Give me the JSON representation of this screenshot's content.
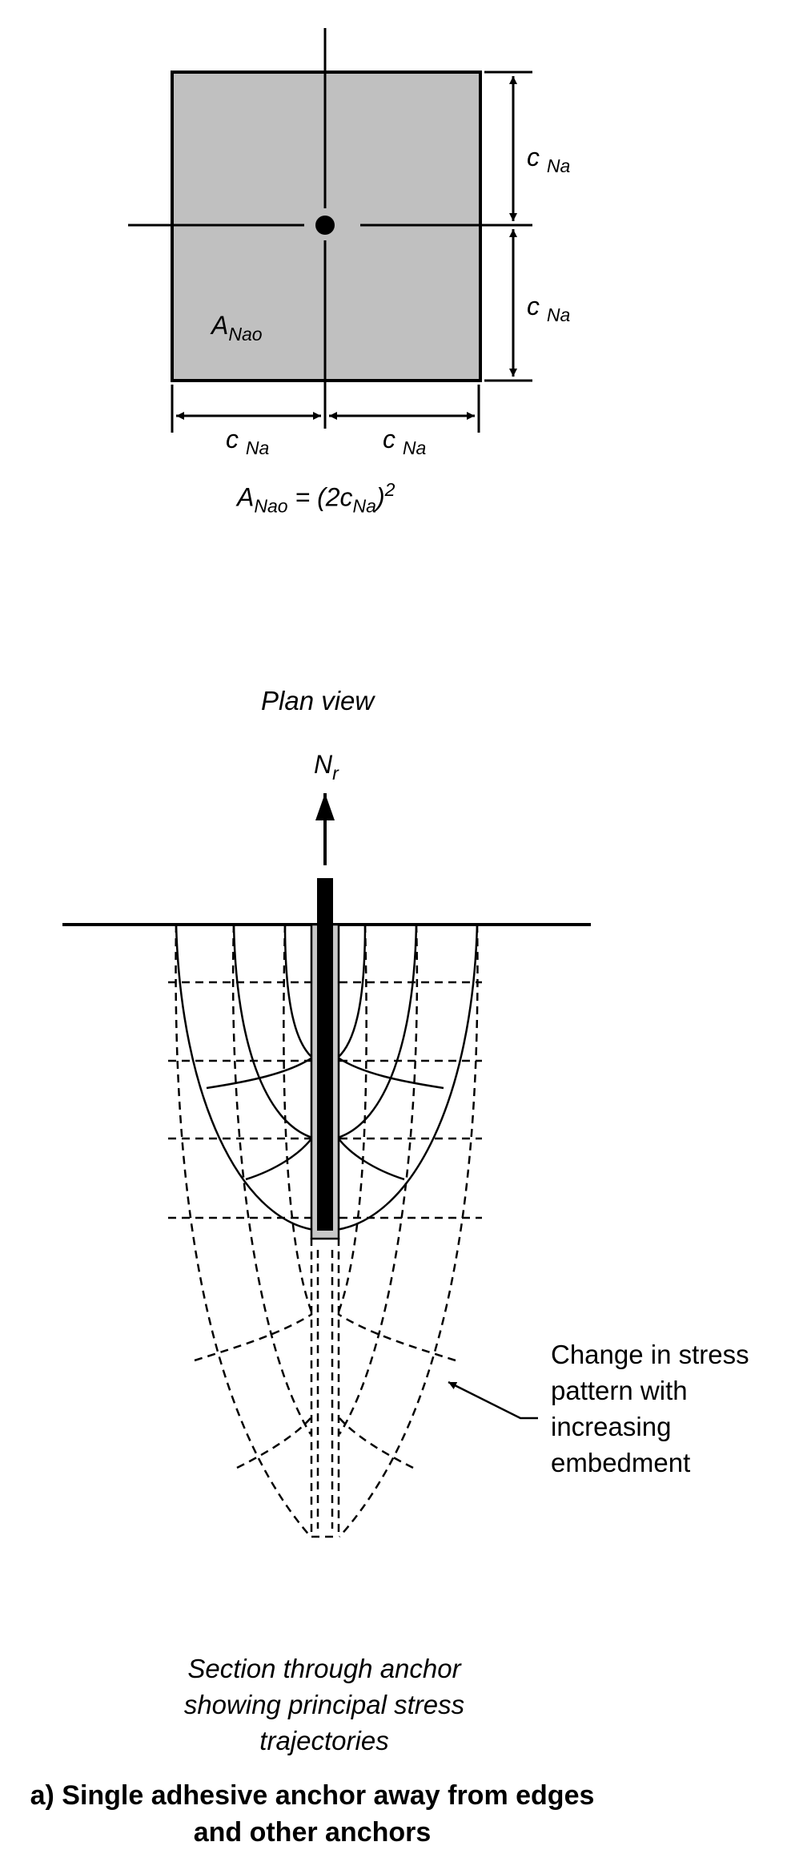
{
  "plan": {
    "area_label": {
      "main": "A",
      "sub": "Nao"
    },
    "dim_label": {
      "main": "c",
      "sub": "Na"
    },
    "formula": {
      "lhs_main": "A",
      "lhs_sub": "Nao",
      "eq": " = (2c",
      "inner_sub": "Na",
      "close": ")",
      "exp": "2"
    },
    "view_title": "Plan view"
  },
  "section": {
    "force_label": {
      "main": "N",
      "sub": "r"
    },
    "annotation_lines": [
      "Change in stress",
      "pattern with",
      "increasing",
      "embedment"
    ],
    "caption_lines": [
      "Section through anchor",
      "showing principal stress",
      "trajectories"
    ]
  },
  "figure_caption_lines": [
    "a) Single adhesive anchor away from edges",
    "and other anchors"
  ],
  "colors": {
    "plan_fill": "#c0c0c0",
    "adhesive_fill": "#c8c8c8",
    "ink": "#000000"
  }
}
